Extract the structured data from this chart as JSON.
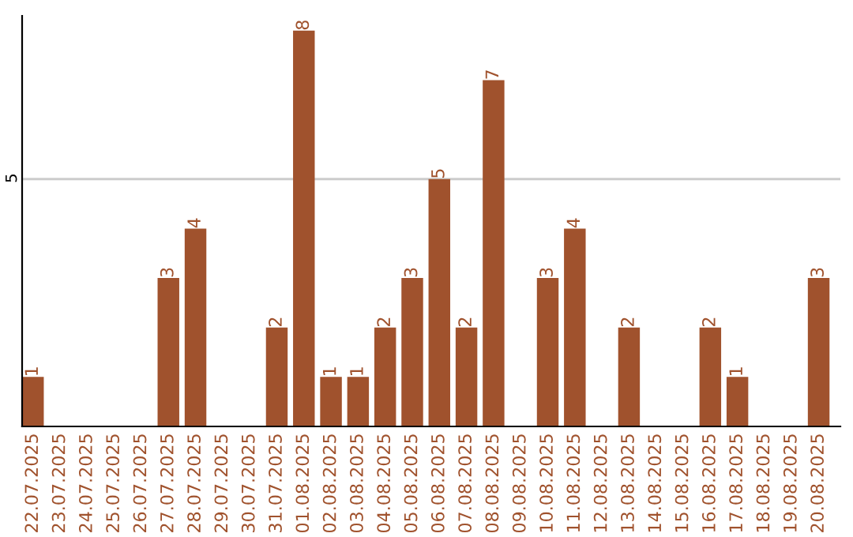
{
  "chart_data": {
    "type": "bar",
    "categories": [
      "22.07.2025",
      "23.07.2025",
      "24.07.2025",
      "25.07.2025",
      "26.07.2025",
      "27.07.2025",
      "28.07.2025",
      "29.07.2025",
      "30.07.2025",
      "31.07.2025",
      "01.08.2025",
      "02.08.2025",
      "03.08.2025",
      "04.08.2025",
      "05.08.2025",
      "06.08.2025",
      "07.08.2025",
      "08.08.2025",
      "09.08.2025",
      "10.08.2025",
      "11.08.2025",
      "12.08.2025",
      "13.08.2025",
      "14.08.2025",
      "15.08.2025",
      "16.08.2025",
      "17.08.2025",
      "18.08.2025",
      "19.08.2025",
      "20.08.2025"
    ],
    "values": [
      1,
      0,
      0,
      0,
      0,
      3,
      4,
      0,
      0,
      2,
      8,
      1,
      1,
      2,
      3,
      5,
      2,
      7,
      0,
      3,
      4,
      0,
      2,
      0,
      0,
      2,
      1,
      0,
      0,
      3
    ],
    "value_labels": [
      "1",
      null,
      null,
      null,
      null,
      "3",
      "4",
      null,
      null,
      "2",
      "8",
      "1",
      "1",
      "2",
      "3",
      "5",
      "2",
      "7",
      null,
      "3",
      "4",
      null,
      "2",
      null,
      null,
      "2",
      "1",
      null,
      null,
      "3"
    ],
    "color": "#a0522d",
    "ylim": [
      0,
      8.3
    ],
    "yticks": [
      5
    ],
    "grid": "y"
  }
}
